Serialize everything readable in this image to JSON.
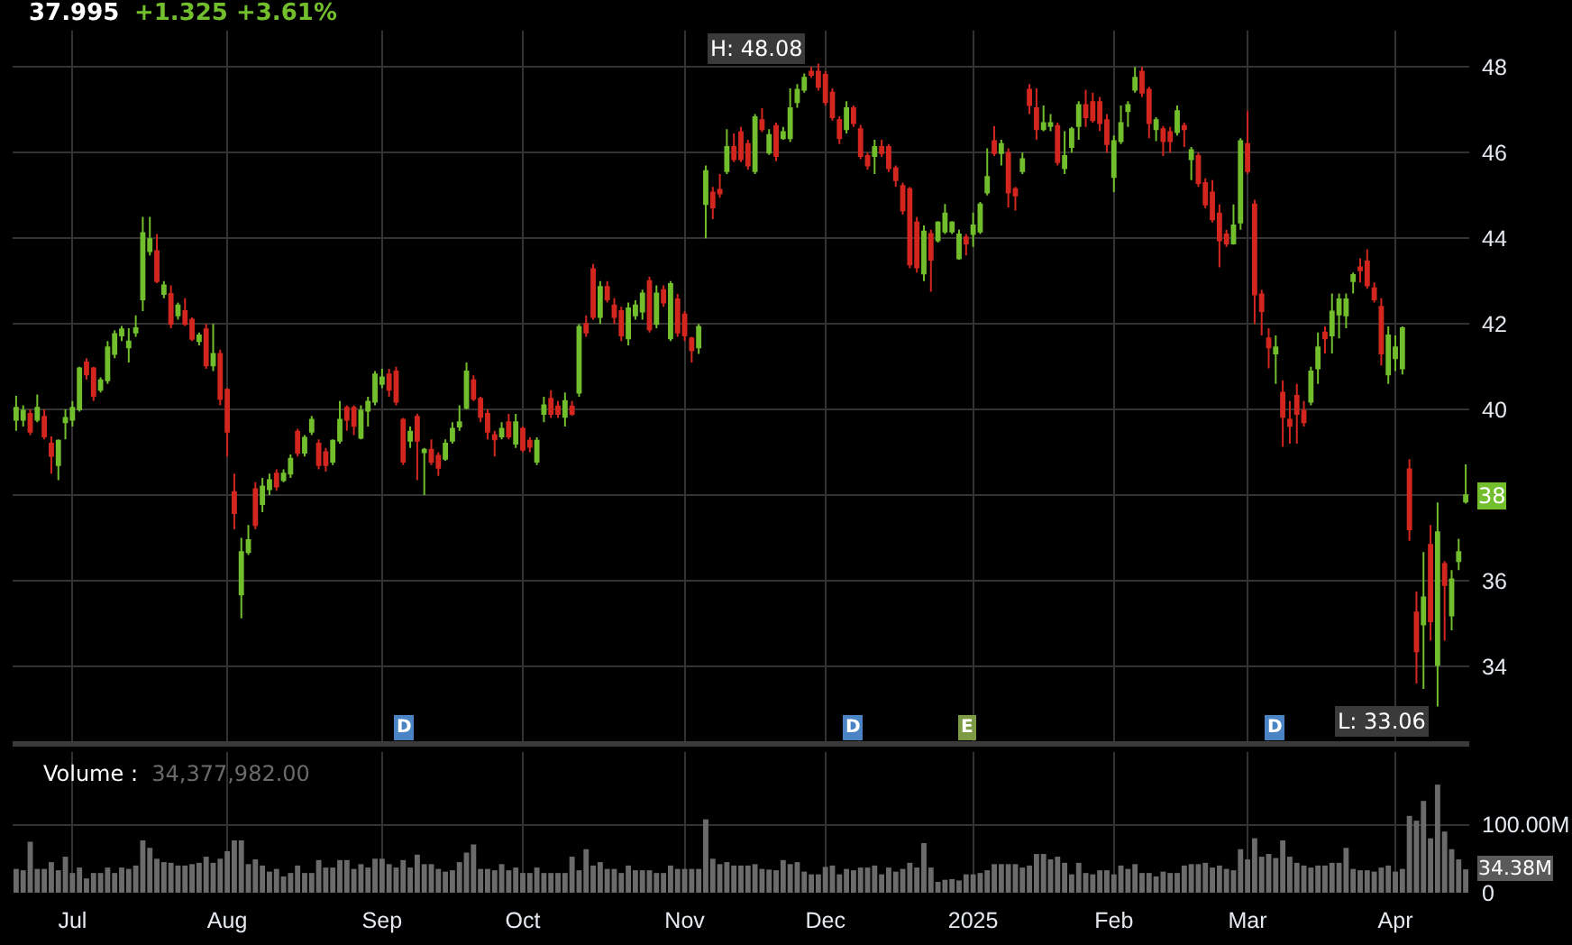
{
  "chart_data": [
    {
      "type": "candlestick",
      "title": "37.995",
      "subtitle": "+1.325 +3.61%",
      "categories": [
        null,
        null,
        null,
        null,
        null,
        null,
        null,
        null,
        null,
        null,
        null,
        null,
        null,
        null,
        null,
        null,
        null,
        null,
        null,
        null,
        null,
        null,
        null,
        null,
        null,
        null,
        null,
        null,
        null,
        null,
        null,
        null,
        null,
        null,
        null,
        null,
        null,
        null,
        null,
        null,
        null,
        null,
        null,
        null,
        null,
        null,
        null,
        null,
        null,
        null,
        null,
        null,
        null,
        null,
        null,
        null,
        null,
        null,
        null,
        null,
        null,
        null,
        null,
        null,
        null,
        null,
        null,
        null,
        null,
        null,
        null,
        null,
        null,
        null,
        null,
        null,
        null,
        null,
        null,
        null,
        null,
        null,
        null,
        null,
        null,
        null,
        null,
        null,
        null,
        null,
        null,
        null,
        null,
        null,
        null,
        null,
        null,
        null,
        null,
        null,
        null,
        null,
        null,
        null,
        null,
        null,
        null,
        null,
        null,
        null,
        null,
        null,
        null,
        null,
        null,
        null,
        null,
        null,
        null,
        null,
        null,
        null,
        null,
        null,
        null,
        null,
        null,
        null,
        null,
        null,
        null,
        null,
        null,
        null,
        null,
        null,
        null,
        null,
        null,
        null,
        null,
        null,
        null,
        null,
        null,
        null,
        null,
        null,
        null,
        null,
        null,
        null,
        null,
        null,
        null,
        null,
        null,
        null,
        null,
        null,
        null,
        null,
        null,
        null,
        null,
        null,
        null,
        null,
        null,
        null,
        null,
        null,
        null,
        null,
        null,
        null,
        null,
        null,
        null,
        null,
        null,
        null,
        null,
        null,
        null,
        null,
        null,
        null,
        null,
        null,
        null,
        null,
        null,
        null,
        null,
        null,
        null,
        null,
        null,
        null,
        null,
        null,
        null,
        null,
        null,
        null,
        null
      ],
      "ohlc": [
        [
          39.76,
          40.32,
          39.5,
          40.04
        ],
        [
          39.76,
          40.1,
          39.6,
          39.97
        ],
        [
          39.9,
          40.0,
          39.4,
          39.48
        ],
        [
          39.76,
          40.35,
          39.7,
          40.04
        ],
        [
          39.83,
          40.0,
          39.3,
          39.37
        ],
        [
          39.2,
          39.37,
          38.5,
          38.92
        ],
        [
          38.7,
          39.3,
          38.35,
          39.27
        ],
        [
          39.7,
          40.0,
          39.3,
          39.8
        ],
        [
          39.76,
          40.2,
          39.6,
          40.04
        ],
        [
          40.0,
          41.0,
          39.95,
          40.96
        ],
        [
          41.1,
          41.2,
          40.7,
          40.82
        ],
        [
          40.96,
          41.0,
          40.2,
          40.32
        ],
        [
          40.46,
          40.75,
          40.4,
          40.68
        ],
        [
          40.68,
          41.6,
          40.6,
          41.45
        ],
        [
          41.3,
          41.85,
          41.2,
          41.76
        ],
        [
          41.73,
          41.95,
          41.6,
          41.87
        ],
        [
          41.45,
          41.9,
          41.1,
          41.59
        ],
        [
          41.8,
          42.2,
          41.7,
          41.9
        ],
        [
          42.57,
          44.5,
          42.3,
          44.12
        ],
        [
          43.7,
          44.5,
          43.6,
          43.98
        ],
        [
          43.7,
          44.1,
          42.95,
          43.0
        ],
        [
          42.7,
          43.0,
          42.6,
          42.9
        ],
        [
          42.7,
          42.9,
          41.9,
          42.0
        ],
        [
          42.2,
          42.5,
          42.1,
          42.43
        ],
        [
          42.3,
          42.6,
          41.95,
          42.0
        ],
        [
          42.1,
          42.15,
          41.6,
          41.65
        ],
        [
          41.6,
          41.8,
          41.5,
          41.73
        ],
        [
          41.87,
          42.0,
          40.95,
          41.03
        ],
        [
          41.03,
          42.0,
          40.9,
          41.3
        ],
        [
          41.3,
          41.4,
          40.1,
          40.25
        ],
        [
          40.46,
          40.5,
          38.9,
          39.48
        ],
        [
          38.07,
          38.5,
          37.2,
          37.58
        ],
        [
          35.68,
          37.0,
          35.12,
          36.67
        ],
        [
          36.67,
          37.3,
          36.6,
          36.95
        ],
        [
          38.14,
          38.3,
          37.2,
          37.3
        ],
        [
          37.79,
          38.4,
          37.6,
          38.2
        ],
        [
          38.14,
          38.5,
          38.0,
          38.35
        ],
        [
          38.5,
          38.6,
          38.1,
          38.2
        ],
        [
          38.35,
          38.6,
          38.3,
          38.5
        ],
        [
          38.5,
          38.95,
          38.4,
          38.85
        ],
        [
          39.48,
          39.55,
          38.9,
          38.99
        ],
        [
          38.99,
          39.4,
          38.9,
          39.34
        ],
        [
          39.48,
          39.85,
          39.4,
          39.76
        ],
        [
          39.2,
          39.3,
          38.6,
          38.7
        ],
        [
          39.0,
          39.1,
          38.55,
          38.7
        ],
        [
          38.78,
          39.3,
          38.7,
          39.27
        ],
        [
          39.27,
          40.2,
          39.2,
          39.76
        ],
        [
          40.04,
          40.1,
          39.5,
          39.76
        ],
        [
          40.04,
          40.1,
          39.4,
          39.62
        ],
        [
          39.34,
          40.1,
          39.3,
          39.97
        ],
        [
          39.97,
          40.3,
          39.6,
          40.18
        ],
        [
          40.18,
          40.9,
          40.1,
          40.82
        ],
        [
          40.6,
          40.95,
          40.5,
          40.75
        ],
        [
          40.82,
          40.95,
          40.3,
          40.46
        ],
        [
          40.89,
          41.0,
          40.1,
          40.18
        ],
        [
          39.76,
          39.8,
          38.7,
          38.78
        ],
        [
          39.27,
          39.6,
          39.1,
          39.48
        ],
        [
          39.83,
          39.9,
          38.35,
          39.27
        ],
        [
          39.0,
          39.1,
          38.0,
          39.06
        ],
        [
          39.06,
          39.3,
          38.7,
          38.78
        ],
        [
          38.92,
          39.0,
          38.45,
          38.64
        ],
        [
          38.85,
          39.3,
          38.8,
          39.2
        ],
        [
          39.27,
          39.7,
          39.2,
          39.55
        ],
        [
          39.6,
          40.1,
          39.5,
          39.7
        ],
        [
          40.04,
          41.1,
          40.0,
          40.89
        ],
        [
          40.68,
          40.8,
          40.2,
          40.25
        ],
        [
          40.25,
          40.3,
          39.7,
          39.83
        ],
        [
          39.9,
          40.0,
          39.3,
          39.48
        ],
        [
          39.4,
          39.5,
          38.9,
          39.3
        ],
        [
          39.37,
          39.7,
          39.3,
          39.55
        ],
        [
          39.7,
          39.9,
          39.3,
          39.37
        ],
        [
          39.2,
          39.9,
          39.1,
          39.7
        ],
        [
          39.55,
          39.6,
          39.0,
          39.06
        ],
        [
          39.27,
          39.35,
          39.0,
          39.13
        ],
        [
          38.78,
          39.35,
          38.7,
          39.27
        ],
        [
          39.9,
          40.3,
          39.7,
          40.1
        ],
        [
          40.25,
          40.45,
          39.8,
          39.9
        ],
        [
          40.07,
          40.2,
          39.8,
          39.9
        ],
        [
          39.83,
          40.4,
          39.6,
          40.2
        ],
        [
          40.07,
          40.2,
          39.85,
          39.9
        ],
        [
          40.39,
          42.0,
          40.3,
          41.93
        ],
        [
          42.0,
          42.2,
          41.7,
          41.8
        ],
        [
          43.28,
          43.4,
          42.1,
          42.16
        ],
        [
          42.16,
          43.0,
          42.0,
          42.86
        ],
        [
          42.86,
          43.0,
          42.5,
          42.57
        ],
        [
          42.43,
          42.6,
          42.0,
          42.16
        ],
        [
          42.3,
          42.4,
          41.6,
          41.73
        ],
        [
          41.66,
          42.5,
          41.5,
          42.36
        ],
        [
          42.2,
          42.55,
          42.1,
          42.43
        ],
        [
          42.29,
          42.8,
          42.1,
          42.71
        ],
        [
          43.0,
          43.1,
          41.8,
          41.87
        ],
        [
          42.0,
          42.9,
          41.9,
          42.71
        ],
        [
          42.79,
          42.9,
          42.4,
          42.5
        ],
        [
          41.66,
          43.0,
          41.6,
          42.93
        ],
        [
          42.57,
          42.7,
          41.7,
          41.8
        ],
        [
          42.22,
          42.3,
          41.6,
          41.73
        ],
        [
          41.66,
          41.7,
          41.1,
          41.38
        ],
        [
          41.45,
          42.0,
          41.3,
          41.93
        ],
        [
          44.8,
          45.7,
          44.0,
          45.57
        ],
        [
          45.07,
          45.2,
          44.45,
          44.72
        ],
        [
          45.13,
          45.5,
          44.95,
          45.05
        ],
        [
          45.57,
          46.55,
          45.5,
          46.13
        ],
        [
          46.13,
          46.45,
          45.78,
          45.85
        ],
        [
          46.48,
          46.6,
          45.78,
          45.85
        ],
        [
          46.2,
          46.3,
          45.6,
          45.7
        ],
        [
          45.57,
          46.9,
          45.5,
          46.83
        ],
        [
          46.76,
          47.04,
          46.48,
          46.55
        ],
        [
          46.0,
          46.55,
          45.95,
          46.41
        ],
        [
          46.62,
          46.7,
          45.8,
          45.92
        ],
        [
          46.34,
          46.6,
          46.3,
          46.48
        ],
        [
          46.34,
          47.5,
          46.25,
          47.04
        ],
        [
          47.18,
          47.6,
          47.05,
          47.47
        ],
        [
          47.47,
          47.85,
          47.4,
          47.75
        ],
        [
          47.89,
          48.0,
          47.75,
          47.82
        ],
        [
          47.89,
          48.08,
          47.45,
          47.54
        ],
        [
          47.82,
          47.9,
          47.1,
          47.18
        ],
        [
          47.4,
          47.5,
          46.75,
          46.83
        ],
        [
          46.76,
          46.85,
          46.2,
          46.34
        ],
        [
          46.55,
          47.2,
          46.45,
          47.04
        ],
        [
          47.04,
          47.1,
          46.6,
          46.69
        ],
        [
          46.55,
          46.65,
          45.85,
          45.92
        ],
        [
          45.92,
          46.0,
          45.6,
          45.7
        ],
        [
          45.92,
          46.3,
          45.5,
          46.13
        ],
        [
          46.13,
          46.3,
          45.9,
          45.99
        ],
        [
          46.13,
          46.2,
          45.55,
          45.64
        ],
        [
          45.64,
          45.7,
          45.2,
          45.36
        ],
        [
          45.22,
          45.3,
          44.55,
          44.65
        ],
        [
          45.15,
          45.2,
          43.3,
          43.39
        ],
        [
          44.37,
          44.5,
          43.2,
          43.32
        ],
        [
          43.18,
          44.3,
          43.0,
          44.16
        ],
        [
          44.1,
          44.2,
          42.75,
          43.5
        ],
        [
          43.95,
          44.4,
          43.9,
          44.37
        ],
        [
          44.16,
          44.8,
          44.1,
          44.58
        ],
        [
          44.16,
          44.4,
          44.1,
          44.37
        ],
        [
          43.53,
          44.2,
          43.5,
          44.09
        ],
        [
          44.02,
          44.1,
          43.6,
          43.88
        ],
        [
          44.1,
          44.6,
          43.8,
          44.3
        ],
        [
          44.16,
          44.85,
          44.1,
          44.79
        ],
        [
          45.07,
          46.1,
          45.0,
          45.43
        ],
        [
          46.27,
          46.62,
          45.92,
          45.99
        ],
        [
          45.99,
          46.3,
          45.7,
          46.2
        ],
        [
          45.99,
          46.1,
          44.72,
          45.07
        ],
        [
          45.15,
          45.2,
          44.65,
          45.0
        ],
        [
          45.57,
          46.0,
          45.5,
          45.85
        ],
        [
          47.47,
          47.6,
          46.9,
          47.11
        ],
        [
          47.04,
          47.5,
          46.3,
          46.55
        ],
        [
          46.55,
          47.1,
          46.5,
          46.69
        ],
        [
          46.62,
          46.9,
          46.5,
          46.69
        ],
        [
          46.62,
          46.7,
          45.7,
          45.78
        ],
        [
          45.64,
          46.5,
          45.5,
          45.92
        ],
        [
          46.13,
          46.6,
          46.0,
          46.55
        ],
        [
          46.62,
          47.2,
          46.3,
          47.11
        ],
        [
          47.11,
          47.47,
          46.6,
          46.83
        ],
        [
          47.18,
          47.4,
          46.7,
          46.76
        ],
        [
          47.18,
          47.3,
          46.5,
          46.69
        ],
        [
          46.76,
          46.9,
          46.0,
          46.2
        ],
        [
          45.43,
          46.4,
          45.08,
          46.27
        ],
        [
          46.27,
          47.1,
          46.2,
          46.69
        ],
        [
          46.97,
          47.2,
          46.6,
          47.11
        ],
        [
          47.47,
          48.0,
          47.4,
          47.75
        ],
        [
          47.89,
          48.0,
          47.3,
          47.4
        ],
        [
          47.47,
          47.54,
          46.34,
          46.69
        ],
        [
          46.55,
          46.83,
          46.27,
          46.76
        ],
        [
          46.55,
          46.62,
          45.92,
          46.27
        ],
        [
          46.48,
          46.6,
          46.0,
          46.27
        ],
        [
          46.48,
          47.1,
          46.4,
          46.97
        ],
        [
          46.62,
          46.7,
          46.13,
          46.55
        ],
        [
          45.85,
          46.13,
          45.36,
          46.06
        ],
        [
          45.92,
          46.0,
          45.2,
          45.29
        ],
        [
          45.29,
          45.4,
          44.7,
          44.79
        ],
        [
          45.07,
          45.36,
          44.37,
          44.44
        ],
        [
          44.58,
          44.79,
          43.32,
          43.95
        ],
        [
          44.09,
          44.2,
          43.8,
          43.88
        ],
        [
          43.88,
          44.79,
          43.85,
          44.3
        ],
        [
          44.37,
          46.34,
          44.2,
          46.27
        ],
        [
          46.2,
          46.97,
          45.5,
          45.57
        ],
        [
          44.79,
          44.9,
          42.0,
          42.69
        ],
        [
          42.69,
          42.8,
          41.73,
          42.3
        ],
        [
          41.66,
          41.9,
          40.96,
          41.45
        ],
        [
          41.31,
          41.73,
          40.6,
          41.45
        ],
        [
          40.39,
          40.68,
          39.13,
          39.83
        ],
        [
          39.76,
          40.2,
          39.2,
          39.62
        ],
        [
          40.32,
          40.6,
          39.2,
          39.9
        ],
        [
          39.97,
          40.2,
          39.6,
          39.7
        ],
        [
          40.18,
          41.0,
          40.1,
          40.89
        ],
        [
          40.96,
          41.8,
          40.6,
          41.45
        ],
        [
          41.8,
          41.94,
          41.31,
          41.66
        ],
        [
          41.73,
          42.71,
          41.31,
          42.29
        ],
        [
          42.22,
          42.71,
          41.66,
          42.57
        ],
        [
          42.2,
          42.71,
          41.9,
          42.57
        ],
        [
          43.0,
          43.2,
          42.71,
          43.14
        ],
        [
          43.32,
          43.53,
          42.97,
          43.25
        ],
        [
          43.46,
          43.74,
          42.82,
          42.9
        ],
        [
          42.83,
          42.97,
          42.5,
          42.57
        ],
        [
          42.4,
          42.6,
          41.03,
          41.31
        ],
        [
          40.82,
          41.94,
          40.6,
          41.73
        ],
        [
          41.2,
          41.73,
          40.9,
          41.45
        ],
        [
          40.96,
          41.94,
          40.82,
          41.9
        ],
        [
          38.6,
          38.84,
          36.93,
          37.2
        ],
        [
          35.26,
          35.75,
          33.6,
          34.35
        ],
        [
          34.98,
          36.67,
          33.47,
          35.61
        ],
        [
          36.84,
          37.3,
          34.6,
          35.05
        ],
        [
          34.03,
          37.83,
          33.06,
          37.13
        ],
        [
          36.39,
          36.46,
          34.6,
          35.9
        ],
        [
          35.19,
          36.25,
          34.84,
          36.03
        ],
        [
          36.46,
          36.98,
          36.25,
          36.67
        ],
        [
          37.85,
          38.72,
          37.8,
          37.995
        ]
      ],
      "colors": [
        "#72be2d",
        "#72be2d",
        "#d3261f",
        "#72be2d",
        "#d3261f",
        "#d3261f",
        "#72be2d",
        "#72be2d",
        "#72be2d",
        "#72be2d",
        "#d3261f",
        "#d3261f",
        "#72be2d",
        "#72be2d",
        "#72be2d",
        "#72be2d",
        "#72be2d",
        "#72be2d",
        "#72be2d",
        "#72be2d",
        "#d3261f",
        "#72be2d",
        "#d3261f",
        "#72be2d",
        "#d3261f",
        "#d3261f",
        "#72be2d",
        "#d3261f",
        "#72be2d",
        "#d3261f",
        "#d3261f",
        "#d3261f",
        "#72be2d",
        "#72be2d",
        "#d3261f",
        "#72be2d",
        "#72be2d",
        "#d3261f",
        "#72be2d",
        "#72be2d",
        "#d3261f",
        "#72be2d",
        "#72be2d",
        "#d3261f",
        "#d3261f",
        "#72be2d",
        "#72be2d",
        "#d3261f",
        "#d3261f",
        "#72be2d",
        "#72be2d",
        "#72be2d",
        "#72be2d",
        "#d3261f",
        "#d3261f",
        "#d3261f",
        "#72be2d",
        "#d3261f",
        "#72be2d",
        "#d3261f",
        "#d3261f",
        "#72be2d",
        "#72be2d",
        "#72be2d",
        "#72be2d",
        "#d3261f",
        "#d3261f",
        "#d3261f",
        "#d3261f",
        "#72be2d",
        "#d3261f",
        "#72be2d",
        "#d3261f",
        "#d3261f",
        "#72be2d",
        "#72be2d",
        "#d3261f",
        "#d3261f",
        "#72be2d",
        "#d3261f",
        "#72be2d",
        "#d3261f",
        "#d3261f",
        "#72be2d",
        "#d3261f",
        "#d3261f",
        "#d3261f",
        "#72be2d",
        "#72be2d",
        "#72be2d",
        "#d3261f",
        "#72be2d",
        "#d3261f",
        "#72be2d",
        "#d3261f",
        "#d3261f",
        "#d3261f",
        "#72be2d",
        "#72be2d",
        "#d3261f",
        "#d3261f",
        "#72be2d",
        "#d3261f",
        "#d3261f",
        "#d3261f",
        "#72be2d",
        "#d3261f",
        "#72be2d",
        "#d3261f",
        "#72be2d",
        "#72be2d",
        "#72be2d",
        "#72be2d",
        "#d3261f",
        "#d3261f",
        "#d3261f",
        "#d3261f",
        "#d3261f",
        "#72be2d",
        "#d3261f",
        "#d3261f",
        "#d3261f",
        "#72be2d",
        "#d3261f",
        "#d3261f",
        "#d3261f",
        "#d3261f",
        "#d3261f",
        "#d3261f",
        "#72be2d",
        "#d3261f",
        "#72be2d",
        "#72be2d",
        "#72be2d",
        "#72be2d",
        "#d3261f",
        "#72be2d",
        "#72be2d",
        "#72be2d",
        "#d3261f",
        "#72be2d",
        "#d3261f",
        "#d3261f",
        "#72be2d",
        "#d3261f",
        "#d3261f",
        "#72be2d",
        "#72be2d",
        "#d3261f",
        "#72be2d",
        "#72be2d",
        "#72be2d",
        "#d3261f",
        "#d3261f",
        "#d3261f",
        "#d3261f",
        "#72be2d",
        "#72be2d",
        "#72be2d",
        "#72be2d",
        "#d3261f",
        "#d3261f",
        "#72be2d",
        "#d3261f",
        "#d3261f",
        "#72be2d",
        "#d3261f",
        "#72be2d",
        "#d3261f",
        "#d3261f",
        "#d3261f",
        "#d3261f",
        "#d3261f",
        "#72be2d",
        "#72be2d",
        "#d3261f",
        "#d3261f",
        "#d3261f",
        "#d3261f",
        "#72be2d",
        "#d3261f",
        "#d3261f",
        "#d3261f",
        "#d3261f",
        "#72be2d",
        "#72be2d",
        "#d3261f",
        "#72be2d",
        "#72be2d",
        "#72be2d",
        "#72be2d",
        "#d3261f",
        "#d3261f",
        "#d3261f",
        "#d3261f",
        "#72be2d",
        "#72be2d",
        "#72be2d",
        "#d3261f",
        "#d3261f",
        "#72be2d",
        "#d3261f",
        "#72be2d",
        "#d3261f",
        "#72be2d",
        "#72be2d",
        "#72be2d"
      ],
      "ylim": [
        32.25,
        48.85
      ],
      "yticks": [
        34,
        36,
        {
          "value": 38,
          "label": null
        },
        40,
        42,
        44,
        46,
        48
      ],
      "grid": true,
      "tick_labels": "y",
      "annotations": [
        "H: 48.08",
        "L: 33.06",
        "38",
        "D",
        "D",
        "E",
        "D"
      ]
    },
    {
      "type": "bar",
      "title": "Volume :",
      "subtitle": "34,377,982.00",
      "categories": [
        null,
        null,
        null,
        null,
        null,
        null,
        null,
        null,
        "Jul",
        null,
        null,
        null,
        null,
        null,
        null,
        null,
        null,
        null,
        null,
        null,
        null,
        null,
        null,
        null,
        null,
        null,
        null,
        null,
        null,
        null,
        "Aug",
        null,
        null,
        null,
        null,
        null,
        null,
        null,
        null,
        null,
        null,
        null,
        null,
        null,
        null,
        null,
        null,
        null,
        null,
        null,
        null,
        null,
        "Sep",
        null,
        null,
        null,
        null,
        null,
        null,
        null,
        null,
        null,
        null,
        null,
        null,
        null,
        null,
        null,
        null,
        null,
        null,
        null,
        "Oct",
        null,
        null,
        null,
        null,
        null,
        null,
        null,
        null,
        null,
        null,
        null,
        null,
        null,
        null,
        null,
        null,
        null,
        null,
        null,
        null,
        null,
        null,
        "Nov",
        null,
        null,
        null,
        null,
        null,
        null,
        null,
        null,
        null,
        null,
        null,
        null,
        null,
        null,
        null,
        null,
        null,
        null,
        null,
        "Dec",
        null,
        null,
        null,
        null,
        null,
        null,
        null,
        null,
        null,
        null,
        null,
        null,
        null,
        null,
        null,
        null,
        null,
        null,
        null,
        null,
        "2025",
        null,
        null,
        null,
        null,
        null,
        null,
        null,
        null,
        null,
        null,
        null,
        null,
        null,
        null,
        null,
        null,
        null,
        null,
        null,
        "Feb",
        null,
        null,
        null,
        null,
        null,
        null,
        null,
        null,
        null,
        null,
        null,
        null,
        null,
        null,
        null,
        null,
        null,
        null,
        "Mar",
        null,
        null,
        null,
        null,
        null,
        null,
        null,
        null,
        null,
        null,
        null,
        null,
        null,
        null,
        null,
        null,
        null,
        null,
        null,
        null,
        "Apr",
        null,
        null,
        null,
        null,
        null,
        null,
        null,
        null,
        null,
        null
      ],
      "values": [
        35,
        33,
        75,
        35,
        35,
        45,
        33,
        53,
        29,
        37,
        21,
        29,
        29,
        37,
        29,
        37,
        35,
        40,
        77,
        66,
        50,
        45,
        44,
        40,
        40,
        42,
        44,
        53,
        44,
        50,
        61,
        77,
        77,
        42,
        49,
        40,
        31,
        35,
        24,
        29,
        40,
        29,
        29,
        48,
        37,
        37,
        48,
        48,
        35,
        42,
        37,
        50,
        50,
        42,
        37,
        48,
        37,
        56,
        42,
        42,
        35,
        31,
        33,
        45,
        59,
        71,
        35,
        35,
        33,
        42,
        33,
        37,
        29,
        29,
        37,
        29,
        29,
        29,
        29,
        53,
        33,
        64,
        40,
        45,
        35,
        35,
        29,
        40,
        33,
        33,
        33,
        29,
        29,
        40,
        35,
        35,
        35,
        35,
        108,
        50,
        42,
        45,
        40,
        40,
        40,
        42,
        35,
        34,
        33,
        48,
        42,
        45,
        31,
        27,
        27,
        38,
        40,
        27,
        35,
        33,
        37,
        37,
        40,
        27,
        37,
        31,
        35,
        44,
        37,
        73,
        37,
        16,
        19,
        20,
        18,
        27,
        27,
        29,
        33,
        42,
        42,
        42,
        42,
        37,
        40,
        57,
        57,
        49,
        53,
        44,
        27,
        44,
        29,
        27,
        33,
        33,
        27,
        40,
        35,
        42,
        29,
        29,
        24,
        31,
        29,
        29,
        40,
        42,
        42,
        44,
        37,
        40,
        35,
        33,
        64,
        49,
        80,
        53,
        57,
        51,
        77,
        53,
        44,
        40,
        37,
        40,
        40,
        44,
        44,
        66,
        35,
        33,
        33,
        31,
        37,
        40,
        31,
        35,
        113,
        106,
        135,
        80,
        159,
        90,
        64,
        49,
        34.38
      ],
      "color": "#6b6b6b",
      "ylim": [
        0,
        207
      ],
      "yticks": [
        0,
        {
          "value": 100,
          "label": "100.00M"
        }
      ],
      "grid": true,
      "annotations": [
        "34.38M"
      ]
    }
  ]
}
